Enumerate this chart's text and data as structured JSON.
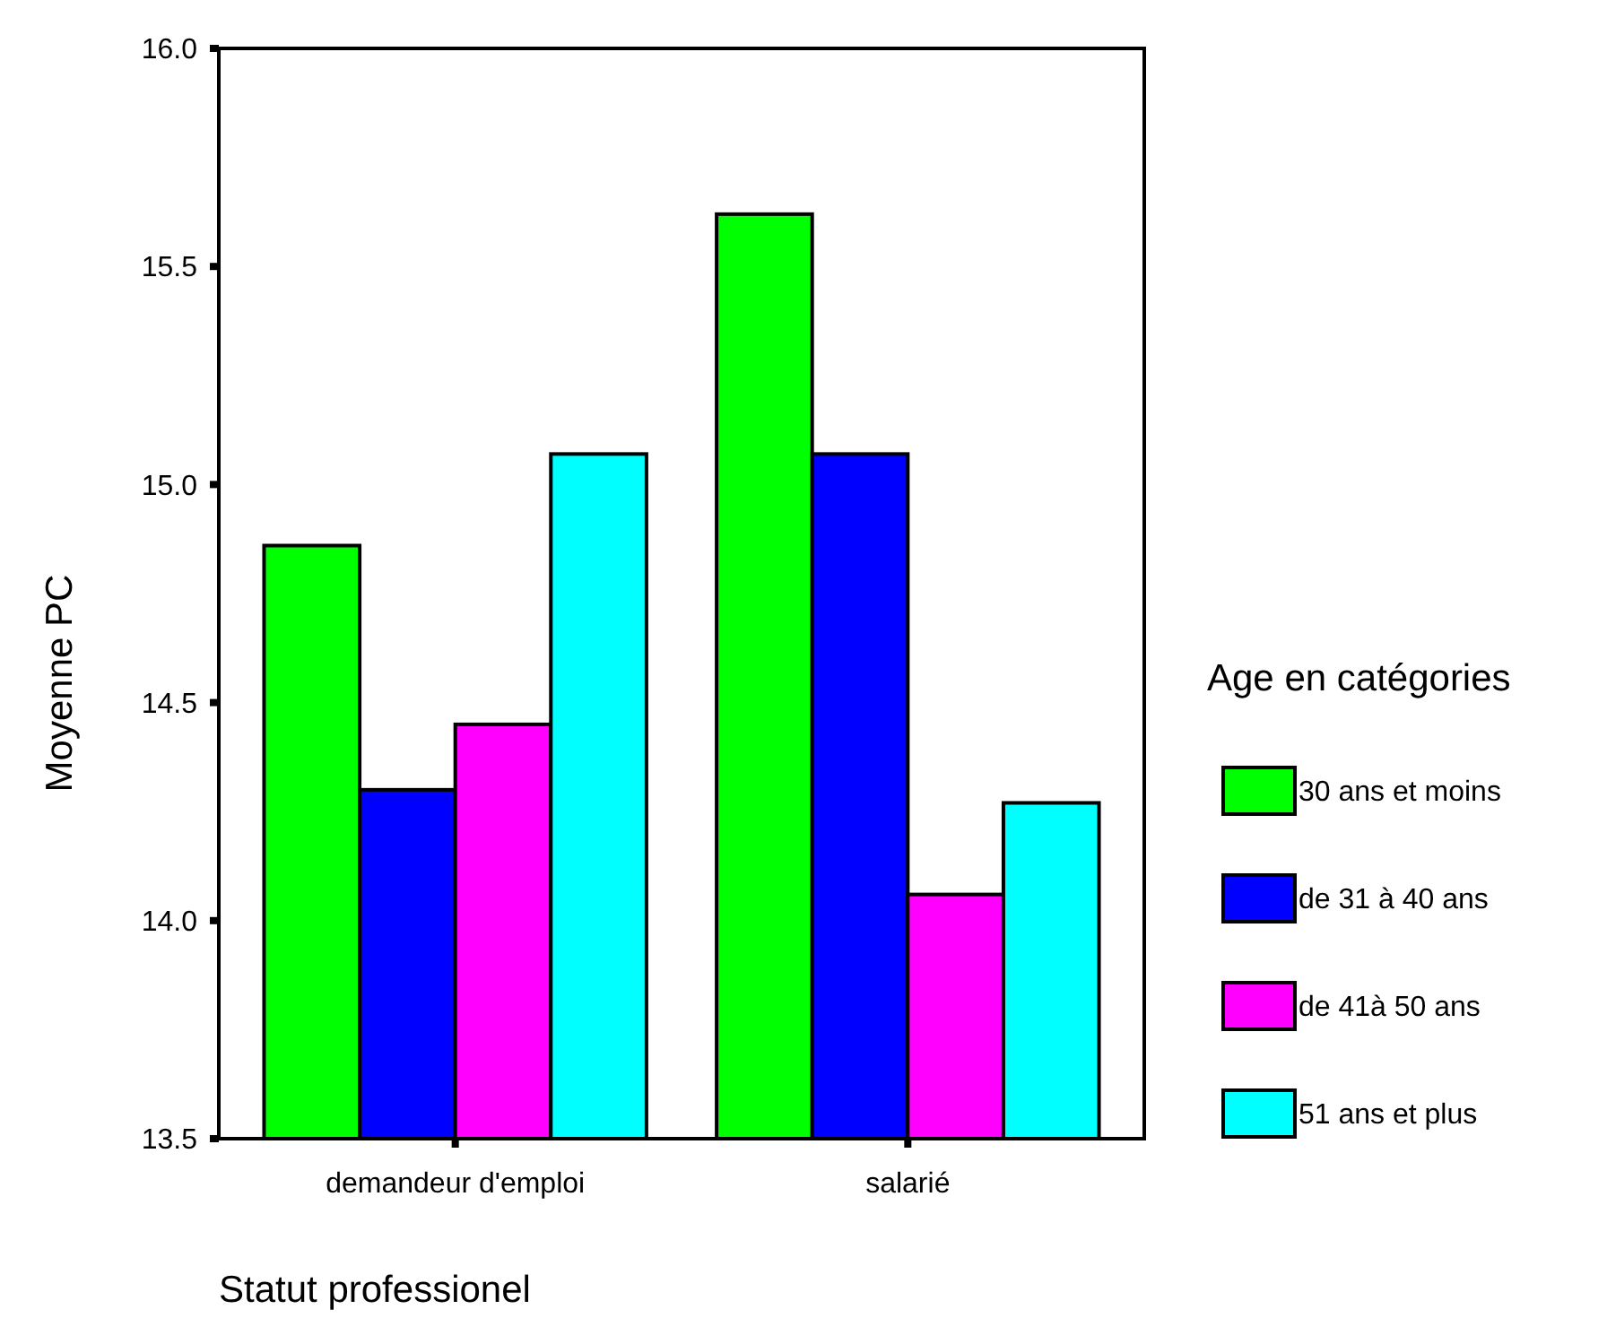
{
  "chart_data": {
    "type": "bar",
    "xlabel": "Statut professionel",
    "ylabel": "Moyenne PC",
    "legend_title": "Age en catégories",
    "categories": [
      "demandeur d'emploi",
      "salarié"
    ],
    "series": [
      {
        "name": "30 ans et moins",
        "color": "#00ff00",
        "values": [
          14.86,
          15.62
        ]
      },
      {
        "name": "de 31 à 40 ans",
        "color": "#0000ff",
        "values": [
          14.3,
          15.07
        ]
      },
      {
        "name": "de 41à 50 ans",
        "color": "#ff00ff",
        "values": [
          14.45,
          14.06
        ]
      },
      {
        "name": "51 ans et plus",
        "color": "#00ffff",
        "values": [
          15.07,
          14.27
        ]
      }
    ],
    "ylim": [
      13.5,
      16
    ],
    "yticks": [
      {
        "value": 13.5,
        "label": "13.5"
      },
      {
        "value": 14,
        "label": "14.0"
      },
      {
        "value": 14.5,
        "label": "14.5"
      },
      {
        "value": 15,
        "label": "15.0"
      },
      {
        "value": 15.5,
        "label": "15.5"
      },
      {
        "value": 16,
        "label": "16.0"
      }
    ],
    "grid": false,
    "legend": "right"
  }
}
